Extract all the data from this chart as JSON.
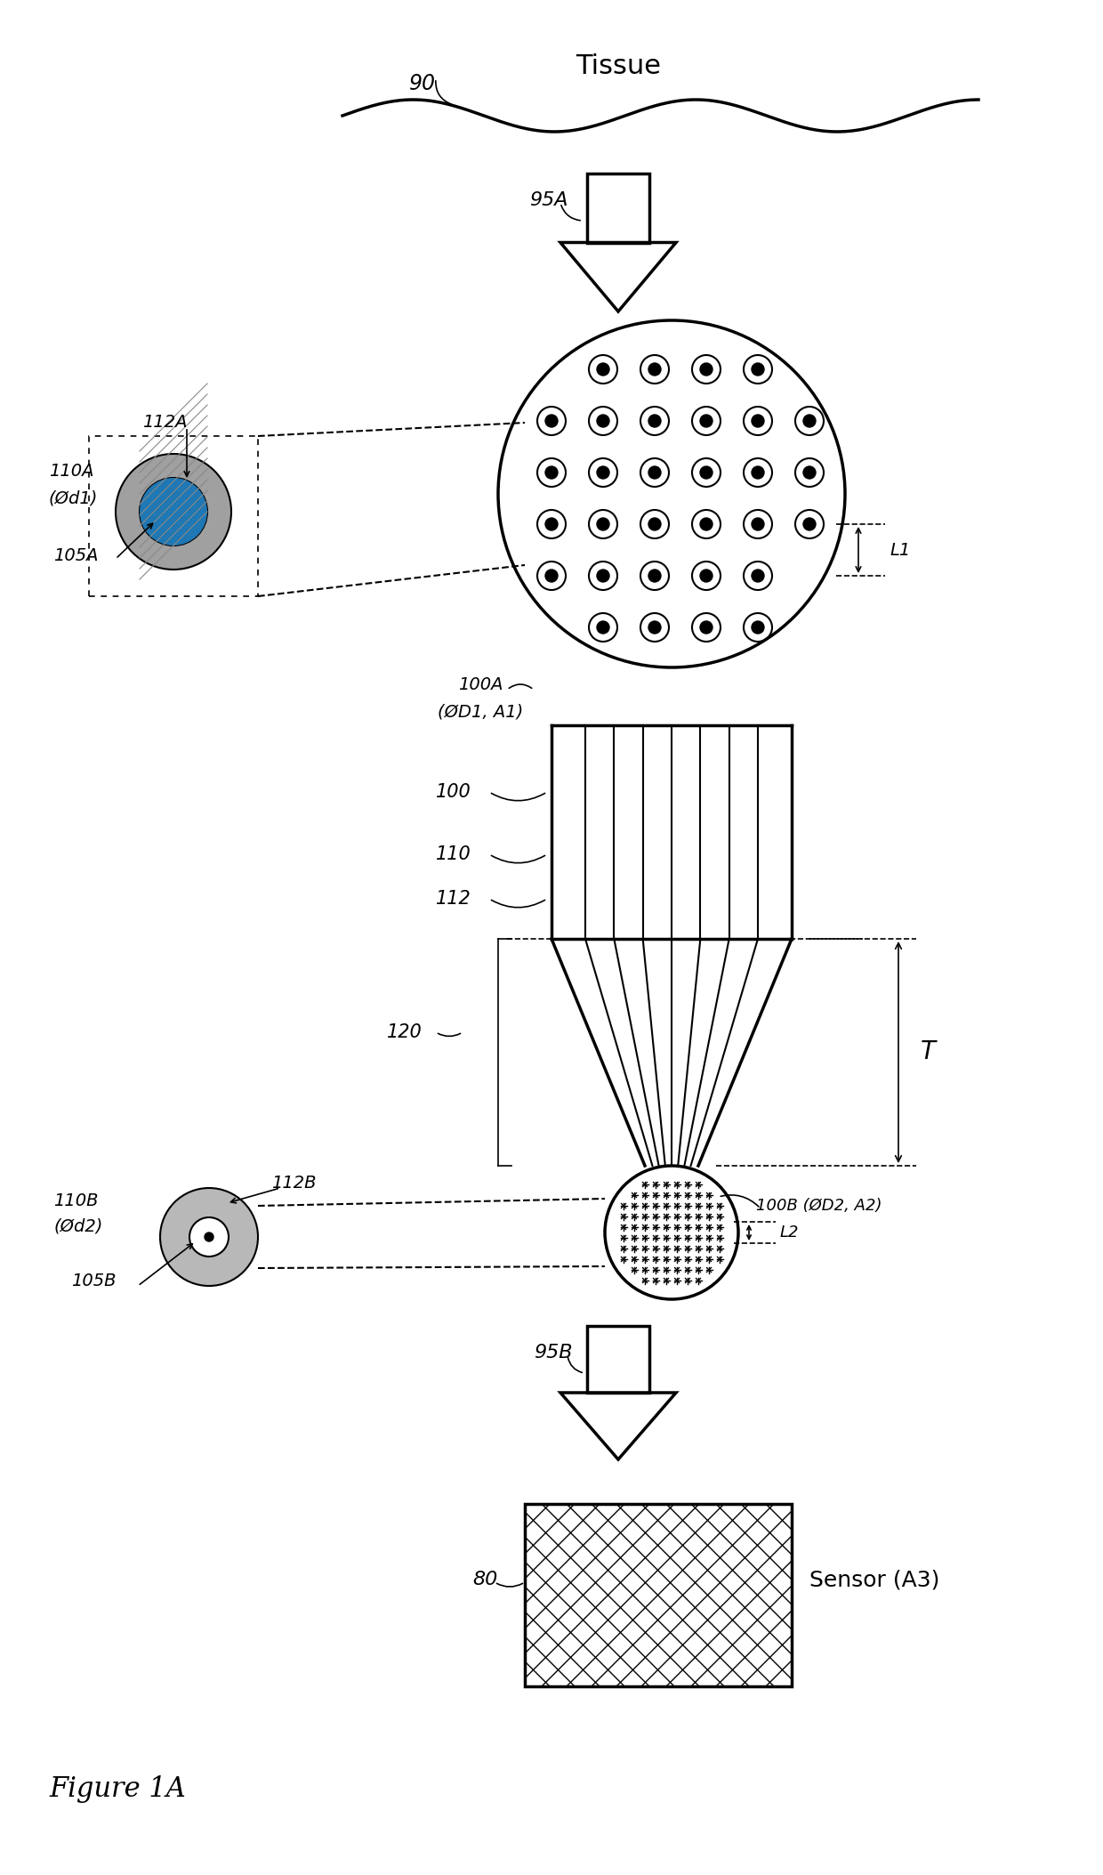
{
  "bg_color": "#ffffff",
  "line_color": "#000000",
  "tissue_label": "Tissue",
  "tissue_ref": "90",
  "arrow_top_label": "95A",
  "circle_top_label_line1": "100A",
  "circle_top_label_line2": "(ØD1, A1)",
  "fiber_top_zoom_label": "112A",
  "fiber_top_cladding_label_line1": "110A",
  "fiber_top_cladding_label_line2": "(Ød1)",
  "fiber_top_core_label": "105A",
  "L1_label": "L1",
  "fiber_bundle_label_100": "100",
  "fiber_bundle_label_110": "110",
  "fiber_bundle_label_112": "112",
  "taper_label": "120",
  "T_label": "T",
  "circle_bot_label": "100B (ØD2, A2)",
  "fiber_bot_zoom_label": "112B",
  "fiber_bot_cladding_label_line1": "110B",
  "fiber_bot_cladding_label_line2": "(Ød2)",
  "fiber_bot_core_label": "105B",
  "L2_label": "L2",
  "arrow_bot_label": "95B",
  "sensor_label": "80",
  "sensor_text": "Sensor (A3)",
  "figure_label": "Figure 1A",
  "fig_width": 12.4,
  "fig_height": 21.07,
  "dpi": 100
}
